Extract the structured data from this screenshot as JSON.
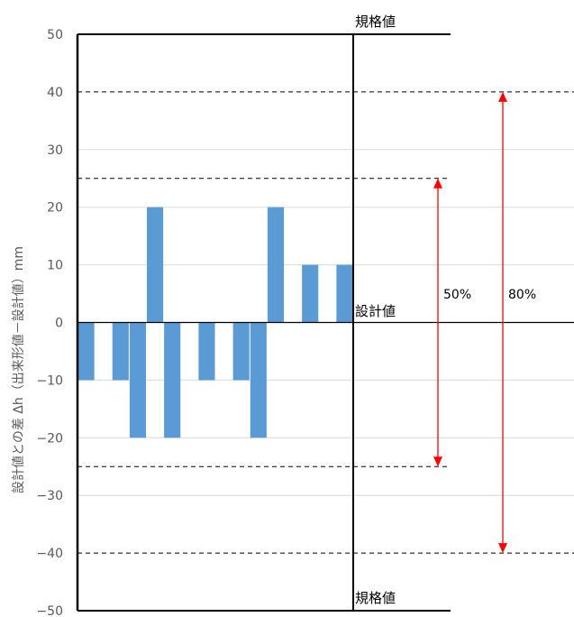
{
  "chart_data": {
    "type": "bar",
    "ylabel": "設計値との差 Δh（出来形値－設計値）mm",
    "ylim": [
      -50,
      50
    ],
    "yticks": [
      50,
      40,
      30,
      20,
      10,
      0,
      -10,
      -20,
      -30,
      -40,
      -50
    ],
    "grid": true,
    "values": [
      -10,
      null,
      -10,
      -20,
      20,
      -20,
      null,
      -10,
      null,
      -10,
      -20,
      20,
      null,
      10,
      null,
      10
    ],
    "spec_limits": [
      50,
      -50
    ],
    "spec_label": "規格値",
    "design_label": "設計値",
    "dashed_levels": [
      40,
      25,
      -25,
      -40
    ],
    "ranges": [
      {
        "label": "50%",
        "from": -25,
        "to": 25,
        "color": "#ff0000"
      },
      {
        "label": "80%",
        "from": -40,
        "to": 40,
        "color": "#ff0000"
      }
    ],
    "colors": {
      "bar": "#5b9bd5",
      "grid": "#d9d9d9",
      "axis": "#000000",
      "arrow": "#ff0000"
    }
  }
}
